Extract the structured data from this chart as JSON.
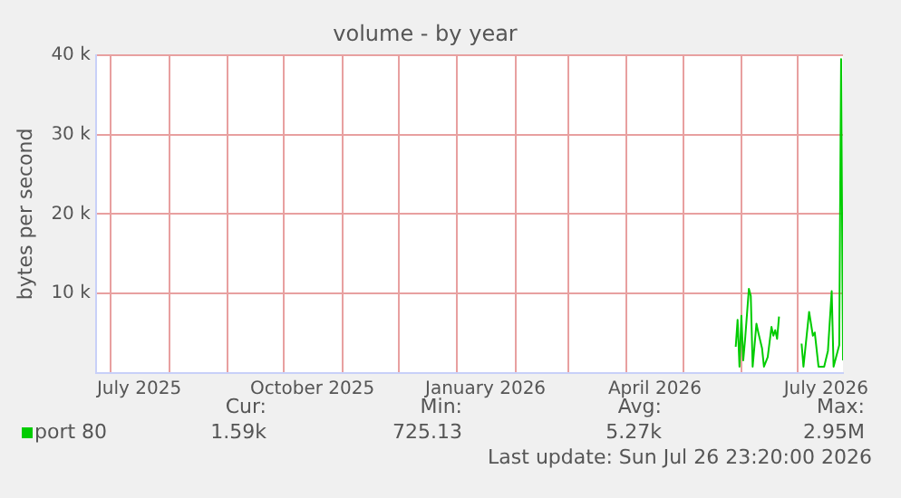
{
  "chart_data": {
    "type": "line",
    "title": "volume - by year",
    "ylabel": "bytes per second",
    "x": [
      "2026-05-29",
      "2026-05-30",
      "2026-05-31",
      "2026-06-01",
      "2026-06-02",
      "2026-06-03",
      "2026-06-05",
      "2026-06-06",
      "2026-06-07",
      "2026-06-09",
      "2026-06-10",
      "2026-06-12",
      "2026-06-13",
      "2026-06-15",
      "2026-06-17",
      "2026-06-18",
      "2026-06-19",
      "2026-06-20",
      "2026-06-21",
      "2026-06-27",
      "2026-07-03",
      "2026-07-04",
      "2026-07-07",
      "2026-07-09",
      "2026-07-10",
      "2026-07-12",
      "2026-07-13",
      "2026-07-15",
      "2026-07-17",
      "2026-07-19",
      "2026-07-20",
      "2026-07-23",
      "2026-07-24",
      "2026-07-25"
    ],
    "series": [
      {
        "name": "port 80",
        "color": "#00cc00",
        "values": [
          3300,
          6700,
          800,
          7200,
          1600,
          4300,
          10600,
          9700,
          800,
          6200,
          5100,
          3100,
          800,
          2000,
          5800,
          4700,
          5400,
          4300,
          7100,
          null,
          3700,
          800,
          7700,
          4700,
          5100,
          800,
          800,
          800,
          2800,
          10300,
          800,
          3500,
          39500,
          1600
        ]
      }
    ],
    "xlim": [
      "2025-06-23",
      "2026-07-25"
    ],
    "xticks": [
      {
        "value": "2025-07-01",
        "label": null
      },
      {
        "value": "2025-07-16",
        "label": "July 2025"
      },
      {
        "value": "2025-08-01",
        "label": null
      },
      {
        "value": "2025-09-01",
        "label": null
      },
      {
        "value": "2025-10-01",
        "label": null
      },
      {
        "value": "2025-10-16",
        "label": "October 2025"
      },
      {
        "value": "2025-11-01",
        "label": null
      },
      {
        "value": "2025-12-01",
        "label": null
      },
      {
        "value": "2026-01-01",
        "label": null
      },
      {
        "value": "2026-01-16",
        "label": "January 2026"
      },
      {
        "value": "2026-02-01",
        "label": null
      },
      {
        "value": "2026-03-01",
        "label": null
      },
      {
        "value": "2026-04-01",
        "label": null
      },
      {
        "value": "2026-04-16",
        "label": "April 2026"
      },
      {
        "value": "2026-05-01",
        "label": null
      },
      {
        "value": "2026-06-01",
        "label": null
      },
      {
        "value": "2026-07-01",
        "label": null
      },
      {
        "value": "2026-07-16",
        "label": "July 2026"
      }
    ],
    "ylim": [
      0,
      40000
    ],
    "yticks": [
      {
        "value": 10000,
        "label": "10 k"
      },
      {
        "value": 20000,
        "label": "20 k"
      },
      {
        "value": 30000,
        "label": "30 k"
      },
      {
        "value": 40000,
        "label": "40 k"
      }
    ],
    "grid": true,
    "legend": "bottom left",
    "marker": "none",
    "line_style": "solid",
    "annotations": [
      "Cur:",
      "1.59k",
      "Min:",
      "725.13",
      "Avg:",
      "5.27k",
      "Max:",
      "2.95M",
      "Last update: Sun Jul 26 23:20:00 2026"
    ]
  }
}
